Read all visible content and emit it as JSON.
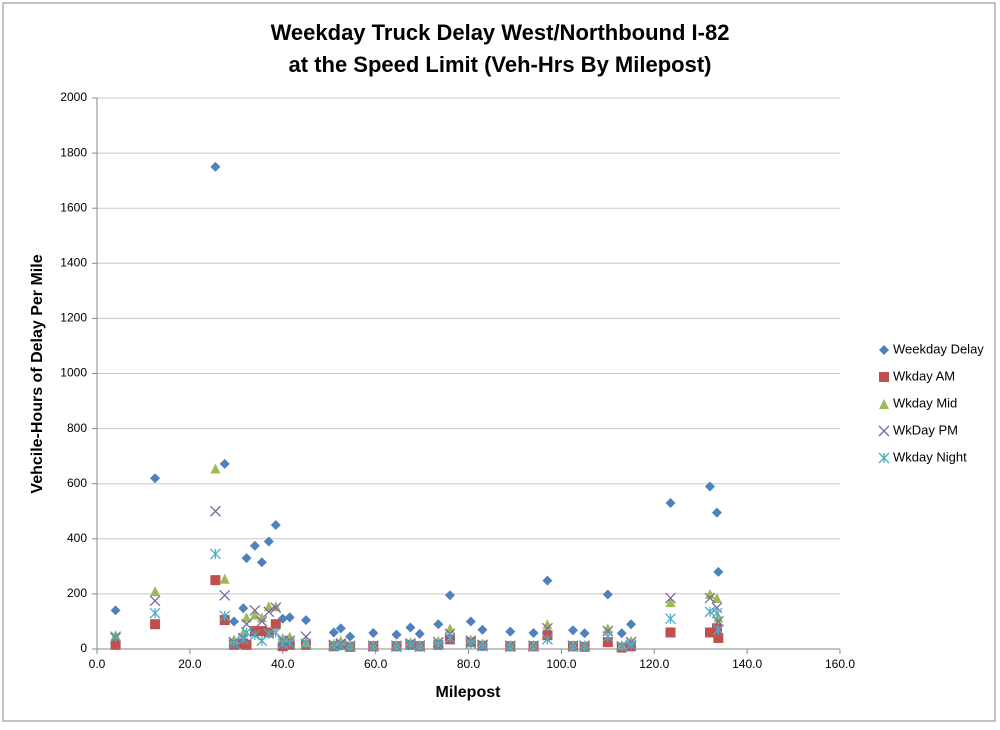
{
  "chart_data": {
    "type": "scatter",
    "title": [
      "Weekday Truck Delay West/Northbound I-82",
      "at the Speed Limit (Veh-Hrs By Milepost)"
    ],
    "x_label": "Milepost",
    "y_label": "Vehcile-Hours of Delay Per Mile",
    "x": [
      4,
      12.5,
      25.5,
      27.5,
      29.5,
      31.5,
      32.2,
      34,
      35.5,
      37,
      38.5,
      40,
      41.5,
      45,
      51,
      52.5,
      54.5,
      59.5,
      64.5,
      67.5,
      69.5,
      73.5,
      76,
      80.5,
      83,
      89,
      94,
      97,
      102.5,
      105,
      110,
      113,
      115,
      123.5,
      132,
      133.5,
      133.8
    ],
    "series": [
      {
        "name": "Weekday Delay",
        "color": "#4f81bd",
        "marker": "diamond",
        "values": [
          140,
          620,
          1750,
          672,
          100,
          148,
          330,
          375,
          315,
          390,
          450,
          110,
          115,
          105,
          60,
          75,
          45,
          58,
          52,
          78,
          55,
          90,
          195,
          100,
          70,
          63,
          58,
          248,
          68,
          57,
          198,
          57,
          90,
          530,
          590,
          495,
          280
        ]
      },
      {
        "name": "Wkday AM",
        "color": "#c0504d",
        "marker": "square",
        "values": [
          15,
          90,
          250,
          105,
          15,
          20,
          15,
          65,
          65,
          60,
          90,
          10,
          15,
          15,
          10,
          15,
          8,
          10,
          10,
          15,
          10,
          15,
          35,
          25,
          12,
          10,
          10,
          50,
          10,
          8,
          25,
          5,
          10,
          60,
          60,
          75,
          40
        ]
      },
      {
        "name": "Wkday Mid",
        "color": "#9bbb59",
        "marker": "triangle",
        "values": [
          50,
          210,
          655,
          255,
          35,
          60,
          115,
          125,
          115,
          155,
          155,
          40,
          45,
          25,
          20,
          30,
          15,
          15,
          15,
          25,
          15,
          30,
          75,
          35,
          20,
          15,
          15,
          90,
          15,
          15,
          75,
          15,
          30,
          170,
          200,
          185,
          115
        ]
      },
      {
        "name": "WkDay PM",
        "color": "#8064a2",
        "marker": "x",
        "values": [
          40,
          175,
          500,
          195,
          25,
          40,
          90,
          140,
          100,
          135,
          150,
          30,
          30,
          45,
          15,
          20,
          12,
          12,
          12,
          20,
          12,
          25,
          55,
          30,
          15,
          12,
          12,
          75,
          12,
          12,
          65,
          10,
          25,
          185,
          185,
          150,
          100
        ]
      },
      {
        "name": "Wkday Night",
        "color": "#4bacc6",
        "marker": "star",
        "values": [
          45,
          130,
          345,
          120,
          20,
          35,
          60,
          50,
          30,
          55,
          60,
          20,
          20,
          20,
          10,
          12,
          8,
          8,
          8,
          15,
          8,
          15,
          40,
          20,
          10,
          8,
          8,
          35,
          8,
          8,
          45,
          8,
          15,
          110,
          135,
          130,
          70
        ]
      }
    ],
    "xlim": [
      0,
      160
    ],
    "xticks": [
      {
        "value": 0,
        "label": "0.0"
      },
      {
        "value": 20,
        "label": "20.0"
      },
      {
        "value": 40,
        "label": "40.0"
      },
      {
        "value": 60,
        "label": "60.0"
      },
      {
        "value": 80,
        "label": "80.0"
      },
      {
        "value": 100,
        "label": "100.0"
      },
      {
        "value": 120,
        "label": "120.0"
      },
      {
        "value": 140,
        "label": "140.0"
      },
      {
        "value": 160,
        "label": "160.0"
      }
    ],
    "ylim": [
      0,
      2000
    ],
    "yticks": [
      0,
      200,
      400,
      600,
      800,
      1000,
      1200,
      1400,
      1600,
      1800,
      2000
    ],
    "grid": true,
    "legend": "right"
  }
}
